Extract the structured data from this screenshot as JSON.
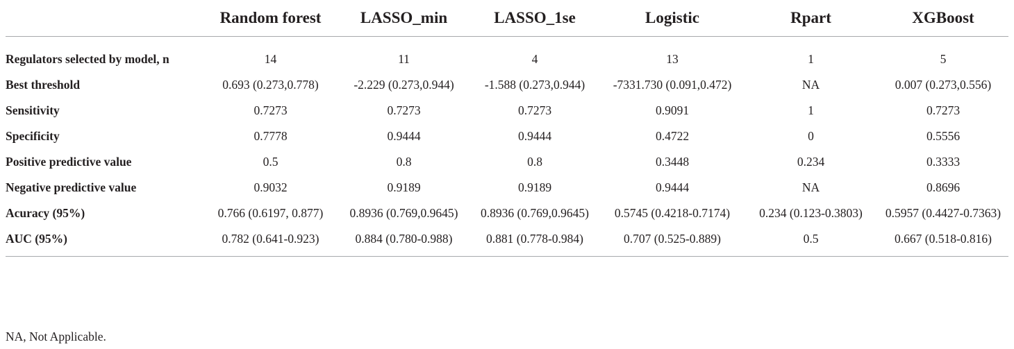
{
  "table": {
    "columns": [
      "",
      "Random forest",
      "LASSO_min",
      "LASSO_1se",
      "Logistic",
      "Rpart",
      "XGBoost"
    ],
    "rows": [
      {
        "label": "Regulators selected by model, n",
        "cells": [
          "14",
          "11",
          "4",
          "13",
          "1",
          "5"
        ]
      },
      {
        "label": "Best threshold",
        "cells": [
          "0.693 (0.273,0.778)",
          "-2.229 (0.273,0.944)",
          "-1.588 (0.273,0.944)",
          "-7331.730 (0.091,0.472)",
          "NA",
          "0.007 (0.273,0.556)"
        ]
      },
      {
        "label": "Sensitivity",
        "cells": [
          "0.7273",
          "0.7273",
          "0.7273",
          "0.9091",
          "1",
          "0.7273"
        ]
      },
      {
        "label": "Specificity",
        "cells": [
          "0.7778",
          "0.9444",
          "0.9444",
          "0.4722",
          "0",
          "0.5556"
        ]
      },
      {
        "label": "Positive predictive value",
        "cells": [
          "0.5",
          "0.8",
          "0.8",
          "0.3448",
          "0.234",
          "0.3333"
        ]
      },
      {
        "label": "Negative predictive value",
        "cells": [
          "0.9032",
          "0.9189",
          "0.9189",
          "0.9444",
          "NA",
          "0.8696"
        ]
      },
      {
        "label": "Acuracy (95%)",
        "cells": [
          "0.766 (0.6197, 0.877)",
          "0.8936 (0.769,0.9645)",
          "0.8936 (0.769,0.9645)",
          "0.5745 (0.4218-0.7174)",
          "0.234 (0.123-0.3803)",
          "0.5957 (0.4427-0.7363)"
        ]
      },
      {
        "label": "AUC (95%)",
        "cells": [
          "0.782 (0.641-0.923)",
          "0.884 (0.780-0.988)",
          "0.881 (0.778-0.984)",
          "0.707 (0.525-0.889)",
          "0.5",
          "0.667 (0.518-0.816)"
        ]
      }
    ]
  },
  "footnote": "NA, Not Applicable."
}
